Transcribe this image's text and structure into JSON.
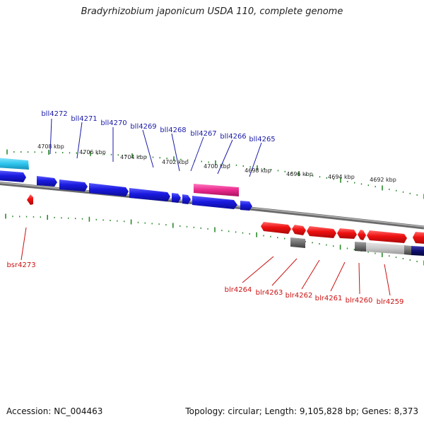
{
  "title": "Bradyrhizobium japonicum USDA 110, complete genome",
  "accession": "Accession: NC_004463",
  "summary": "Topology: circular; Length: 9,105,828 bp; Genes: 8,373",
  "scale_labels": [
    "4708 kbp",
    "4706 kbp",
    "4704 kbp",
    "4702 kbp",
    "4700 kbp",
    "4698 kbp",
    "4696 kbp",
    "4694 kbp",
    "4692 kbp"
  ],
  "top_gene_labels": [
    "bll4272",
    "bll4271",
    "bll4270",
    "bll4269",
    "bll4268",
    "bll4267",
    "bll4266",
    "bll4265"
  ],
  "bottom_gene_labels": [
    "bsr4273",
    "blr4264",
    "blr4263",
    "blr4262",
    "blr4261",
    "blr4260",
    "blr4259"
  ],
  "colors": {
    "reverse_gene": "#1a1adf",
    "forward_gene": "#ee1111",
    "highlight": "#e8288c",
    "cyan": "#2fc6ee",
    "navy": "#101070",
    "gray_gene": "#6f6f6f",
    "light_gray_gene": "#c8c8c8",
    "tick": "#2a8a2a",
    "axis": "#8a8a8a",
    "top_label": "#1a1aa8",
    "bottom_label": "#cc1111",
    "scale_text": "#222222"
  }
}
